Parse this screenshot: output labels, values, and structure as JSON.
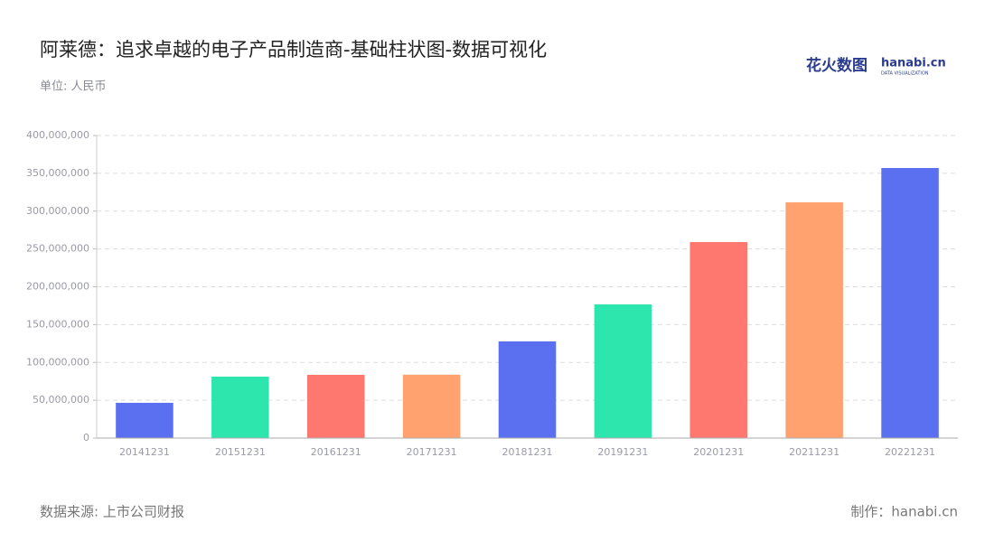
{
  "chart_data": {
    "type": "bar",
    "title": "阿莱德：追求卓越的电子产品制造商-基础柱状图-数据可视化",
    "subtitle": "单位: 人民币",
    "source": "数据来源: 上市公司财报",
    "credit": "制作：hanabi.cn",
    "brand": "花火数图",
    "brand_en": "hanabi.cn",
    "brand_tag": "DATA VISUALIZATION",
    "categories": [
      "20141231",
      "20151231",
      "20161231",
      "20171231",
      "20181231",
      "20191231",
      "20201231",
      "20211231",
      "20221231"
    ],
    "values": [
      46600000,
      81200000,
      83600000,
      83800000,
      127800000,
      176700000,
      259100000,
      311600000,
      357000000
    ],
    "colors": [
      "#5a70f0",
      "#2de6ae",
      "#ff7870",
      "#ffa26f",
      "#5a70f0",
      "#2de6ae",
      "#ff7870",
      "#ffa26f",
      "#5a70f0"
    ],
    "ylim": [
      0,
      400000000
    ],
    "yticks": [
      0,
      {
        "value": 50000000,
        "label": "50,000,000"
      },
      {
        "value": 100000000,
        "label": "100,000,000"
      },
      {
        "value": 150000000,
        "label": "150,000,000"
      },
      {
        "value": 200000000,
        "label": "200,000,000"
      },
      {
        "value": 250000000,
        "label": "250,000,000"
      },
      {
        "value": 300000000,
        "label": "300,000,000"
      },
      {
        "value": 350000000,
        "label": "350,000,000"
      },
      {
        "value": 400000000,
        "label": "400,000,000"
      }
    ],
    "grid": true
  }
}
